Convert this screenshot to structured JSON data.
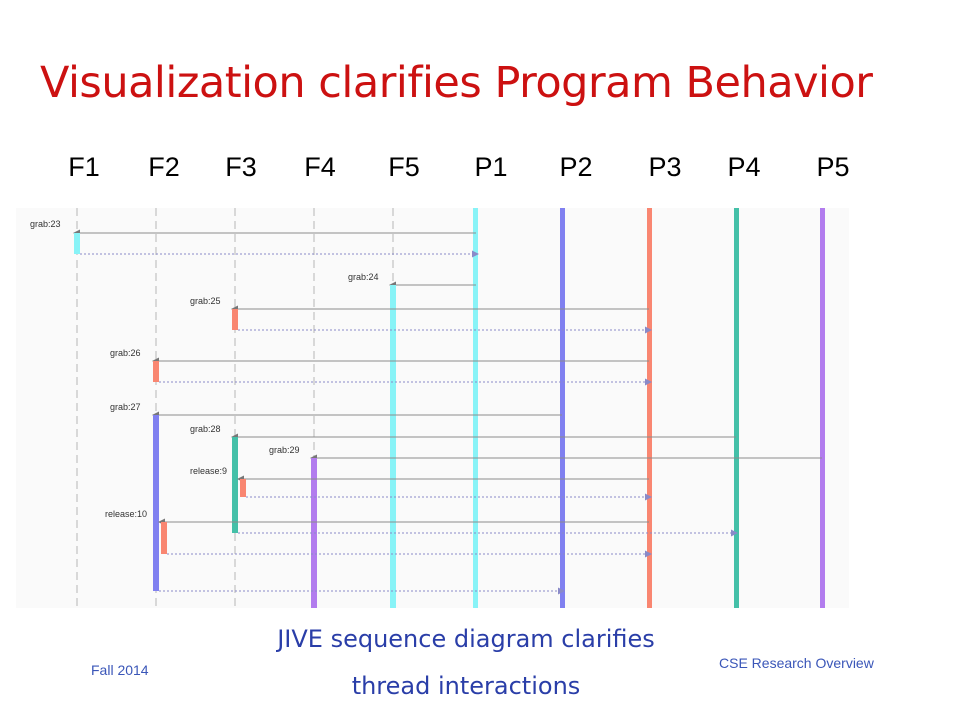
{
  "slide": {
    "title": "Visualization clarifies Program Behavior",
    "caption_line1": "JIVE sequence diagram clarifies",
    "caption_line2": "thread interactions",
    "footer_left": "Fall 2014",
    "footer_right": "CSE Research Overview"
  },
  "columns": [
    "F1",
    "F2",
    "F3",
    "F4",
    "F5",
    "P1",
    "P2",
    "P3",
    "P4",
    "P5"
  ],
  "lifeline_colors": {
    "P1": "#88f3f7",
    "P2": "#8080f0",
    "P3": "#f98671",
    "P4": "#44c0a8",
    "P5": "#b27cee",
    "F_dashed": "#c9c9c9"
  },
  "messages": [
    {
      "label": "grab:23",
      "from": "P1",
      "to": "F1",
      "activation_color": "#88f3f7"
    },
    {
      "label": "grab:24",
      "from": "P1",
      "to": "F5",
      "activation_color": "#88f3f7"
    },
    {
      "label": "grab:25",
      "from": "P3",
      "to": "F3",
      "activation_color": "#f98671"
    },
    {
      "label": "grab:26",
      "from": "P3",
      "to": "F2",
      "activation_color": "#f98671"
    },
    {
      "label": "grab:27",
      "from": "P2",
      "to": "F2",
      "activation_color": "#8080f0"
    },
    {
      "label": "grab:28",
      "from": "P4",
      "to": "F3",
      "activation_color": "#44c0a8"
    },
    {
      "label": "grab:29",
      "from": "P5",
      "to": "F4",
      "activation_color": "#b27cee"
    },
    {
      "label": "release:9",
      "from": "P3",
      "to": "F3",
      "activation_color": "#f98671"
    },
    {
      "label": "release:10",
      "from": "P3",
      "to": "F2",
      "activation_color": "#f98671"
    }
  ]
}
